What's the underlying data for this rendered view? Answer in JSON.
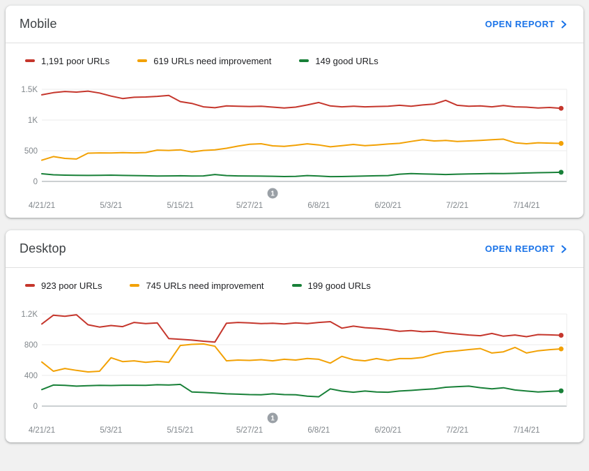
{
  "page": {
    "background": "#f1f1f1"
  },
  "colors": {
    "link": "#1a73e8",
    "poor": "#c5362c",
    "needs_improvement": "#f2a104",
    "good": "#188038",
    "gridline": "#ebebeb",
    "axis_line": "#9aa0a6",
    "axis_text": "#80868b",
    "annotation_fill": "#9aa0a6"
  },
  "cards": [
    {
      "title": "Mobile",
      "action_label": "OPEN REPORT"
    },
    {
      "title": "Desktop",
      "action_label": "OPEN REPORT"
    }
  ],
  "chart_data": [
    {
      "type": "line",
      "title": "Mobile",
      "x_unit": "date",
      "x_start": "4/21/21",
      "x_max_day": 90,
      "x_days": [
        0,
        2,
        4,
        6,
        8,
        10,
        12,
        14,
        16,
        18,
        20,
        22,
        24,
        26,
        28,
        30,
        32,
        34,
        36,
        38,
        40,
        42,
        44,
        46,
        48,
        50,
        52,
        54,
        56,
        58,
        60,
        62,
        64,
        66,
        68,
        70,
        72,
        74,
        76,
        78,
        80,
        82,
        84,
        86,
        88,
        90
      ],
      "xticks": [
        {
          "day": 0,
          "label": "4/21/21"
        },
        {
          "day": 12,
          "label": "5/3/21"
        },
        {
          "day": 24,
          "label": "5/15/21"
        },
        {
          "day": 36,
          "label": "5/27/21"
        },
        {
          "day": 48,
          "label": "6/8/21"
        },
        {
          "day": 60,
          "label": "6/20/21"
        },
        {
          "day": 72,
          "label": "7/2/21"
        },
        {
          "day": 84,
          "label": "7/14/21"
        }
      ],
      "yticks": [
        {
          "value": 0,
          "label": "0"
        },
        {
          "value": 500,
          "label": "500"
        },
        {
          "value": 1000,
          "label": "1K"
        },
        {
          "value": 1500,
          "label": "1.5K"
        }
      ],
      "ylim": [
        0,
        1500
      ],
      "legend_position": "top",
      "grid": true,
      "annotation": {
        "label": "1",
        "day": 40
      },
      "series": [
        {
          "name": "1,191 poor URLs",
          "final_value": 1191,
          "color": "#c5362c",
          "values": [
            1410,
            1445,
            1465,
            1455,
            1470,
            1440,
            1390,
            1350,
            1370,
            1375,
            1385,
            1400,
            1300,
            1270,
            1215,
            1200,
            1230,
            1225,
            1220,
            1225,
            1210,
            1195,
            1210,
            1245,
            1285,
            1230,
            1215,
            1225,
            1215,
            1220,
            1225,
            1240,
            1225,
            1245,
            1260,
            1320,
            1240,
            1225,
            1230,
            1215,
            1235,
            1215,
            1210,
            1195,
            1205,
            1191
          ]
        },
        {
          "name": "619 URLs need improvement",
          "final_value": 619,
          "color": "#f2a104",
          "values": [
            345,
            405,
            375,
            365,
            460,
            465,
            462,
            468,
            465,
            470,
            510,
            505,
            515,
            480,
            505,
            515,
            540,
            575,
            605,
            614,
            580,
            572,
            590,
            612,
            594,
            564,
            583,
            602,
            583,
            594,
            609,
            621,
            651,
            678,
            659,
            667,
            651,
            659,
            667,
            678,
            689,
            629,
            614,
            629,
            624,
            619
          ]
        },
        {
          "name": "149 good URLs",
          "final_value": 149,
          "color": "#188038",
          "values": [
            125,
            108,
            102,
            100,
            98,
            100,
            102,
            98,
            95,
            92,
            88,
            90,
            92,
            88,
            90,
            112,
            95,
            90,
            88,
            86,
            84,
            80,
            82,
            95,
            88,
            78,
            80,
            84,
            88,
            92,
            95,
            118,
            128,
            122,
            118,
            112,
            118,
            122,
            125,
            130,
            128,
            132,
            138,
            142,
            145,
            149
          ]
        }
      ]
    },
    {
      "type": "line",
      "title": "Desktop",
      "x_unit": "date",
      "x_start": "4/21/21",
      "x_max_day": 90,
      "x_days": [
        0,
        2,
        4,
        6,
        8,
        10,
        12,
        14,
        16,
        18,
        20,
        22,
        24,
        26,
        28,
        30,
        32,
        34,
        36,
        38,
        40,
        42,
        44,
        46,
        48,
        50,
        52,
        54,
        56,
        58,
        60,
        62,
        64,
        66,
        68,
        70,
        72,
        74,
        76,
        78,
        80,
        82,
        84,
        86,
        88,
        90
      ],
      "xticks": [
        {
          "day": 0,
          "label": "4/21/21"
        },
        {
          "day": 12,
          "label": "5/3/21"
        },
        {
          "day": 24,
          "label": "5/15/21"
        },
        {
          "day": 36,
          "label": "5/27/21"
        },
        {
          "day": 48,
          "label": "6/8/21"
        },
        {
          "day": 60,
          "label": "6/20/21"
        },
        {
          "day": 72,
          "label": "7/2/21"
        },
        {
          "day": 84,
          "label": "7/14/21"
        }
      ],
      "yticks": [
        {
          "value": 0,
          "label": "0"
        },
        {
          "value": 400,
          "label": "400"
        },
        {
          "value": 800,
          "label": "800"
        },
        {
          "value": 1200,
          "label": "1.2K"
        }
      ],
      "ylim": [
        0,
        1200
      ],
      "legend_position": "top",
      "grid": true,
      "annotation": {
        "label": "1",
        "day": 40
      },
      "series": [
        {
          "name": "923 poor URLs",
          "final_value": 923,
          "color": "#c5362c",
          "values": [
            1070,
            1185,
            1170,
            1190,
            1060,
            1030,
            1050,
            1035,
            1090,
            1075,
            1085,
            880,
            870,
            860,
            845,
            835,
            1080,
            1090,
            1085,
            1075,
            1080,
            1070,
            1085,
            1075,
            1090,
            1100,
            1015,
            1042,
            1022,
            1013,
            998,
            975,
            984,
            969,
            975,
            955,
            940,
            926,
            917,
            946,
            911,
            926,
            905,
            932,
            928,
            923
          ]
        },
        {
          "name": "745 URLs need improvement",
          "final_value": 745,
          "color": "#f2a104",
          "values": [
            575,
            455,
            490,
            465,
            445,
            455,
            630,
            580,
            590,
            570,
            585,
            570,
            790,
            805,
            810,
            780,
            590,
            600,
            595,
            605,
            590,
            610,
            600,
            620,
            610,
            560,
            648,
            604,
            590,
            619,
            594,
            619,
            619,
            634,
            677,
            707,
            721,
            736,
            750,
            692,
            707,
            765,
            692,
            721,
            735,
            745
          ]
        },
        {
          "name": "199 good URLs",
          "final_value": 199,
          "color": "#188038",
          "values": [
            215,
            275,
            270,
            260,
            265,
            270,
            268,
            272,
            272,
            270,
            278,
            275,
            283,
            185,
            178,
            170,
            160,
            155,
            150,
            148,
            160,
            150,
            148,
            130,
            122,
            225,
            195,
            181,
            196,
            185,
            181,
            196,
            205,
            215,
            225,
            245,
            254,
            260,
            240,
            225,
            239,
            210,
            196,
            185,
            192,
            199
          ]
        }
      ]
    }
  ]
}
